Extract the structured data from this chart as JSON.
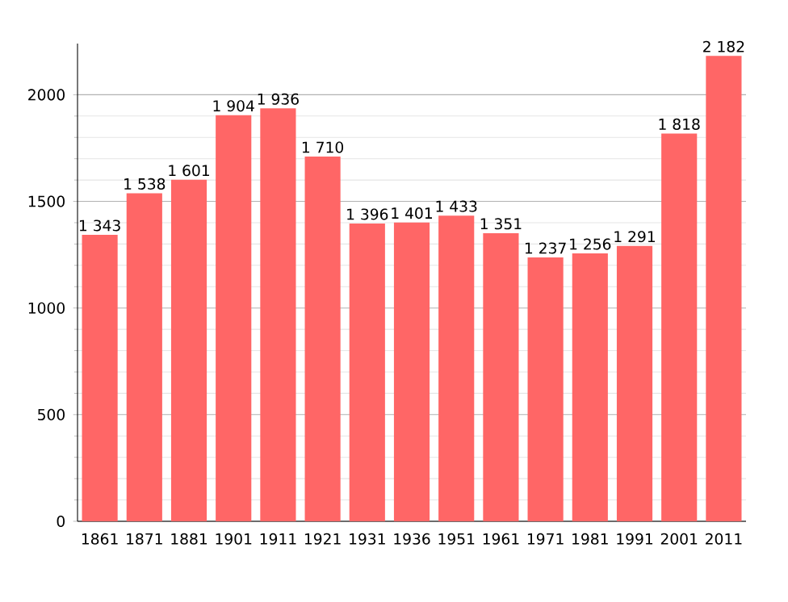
{
  "chart_data": {
    "type": "bar",
    "categories": [
      "1861",
      "1871",
      "1881",
      "1901",
      "1911",
      "1921",
      "1931",
      "1936",
      "1951",
      "1961",
      "1971",
      "1981",
      "1991",
      "2001",
      "2011"
    ],
    "values": [
      1343,
      1538,
      1601,
      1904,
      1936,
      1710,
      1396,
      1401,
      1433,
      1351,
      1237,
      1256,
      1291,
      1818,
      2182
    ],
    "value_labels": [
      "1 343",
      "1 538",
      "1 601",
      "1 904",
      "1 936",
      "1 710",
      "1 396",
      "1 401",
      "1 433",
      "1 351",
      "1 237",
      "1 256",
      "1 291",
      "1 818",
      "2 182"
    ],
    "color": "#ff6666",
    "ylim": [
      0,
      2240
    ],
    "yticks": [
      0,
      500,
      1000,
      1500,
      2000
    ],
    "grid": "y"
  }
}
